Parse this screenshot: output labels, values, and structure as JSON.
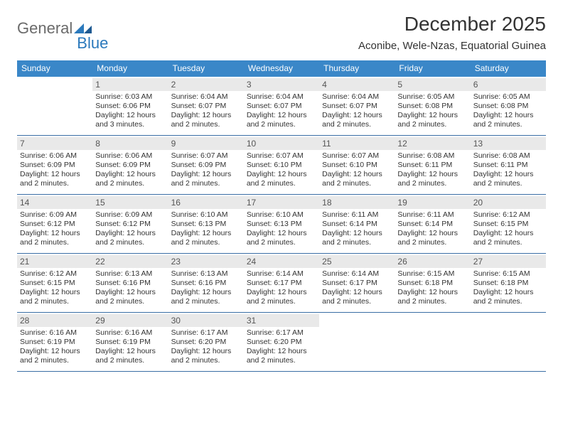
{
  "logo": {
    "text1": "General",
    "text2": "Blue"
  },
  "title": "December 2025",
  "subtitle": "Aconibe, Wele-Nzas, Equatorial Guinea",
  "colors": {
    "header_bar": "#3a87c8",
    "header_text": "#ffffff",
    "daynum_bg": "#e9e9e9",
    "week_border": "#3a6ea5",
    "logo_gray": "#6a6a6a",
    "logo_blue": "#2b79bc"
  },
  "dow": [
    "Sunday",
    "Monday",
    "Tuesday",
    "Wednesday",
    "Thursday",
    "Friday",
    "Saturday"
  ],
  "weeks": [
    [
      {
        "n": "",
        "sr": "",
        "ss": "",
        "dl": ""
      },
      {
        "n": "1",
        "sr": "6:03 AM",
        "ss": "6:06 PM",
        "dl": "12 hours and 3 minutes."
      },
      {
        "n": "2",
        "sr": "6:04 AM",
        "ss": "6:07 PM",
        "dl": "12 hours and 2 minutes."
      },
      {
        "n": "3",
        "sr": "6:04 AM",
        "ss": "6:07 PM",
        "dl": "12 hours and 2 minutes."
      },
      {
        "n": "4",
        "sr": "6:04 AM",
        "ss": "6:07 PM",
        "dl": "12 hours and 2 minutes."
      },
      {
        "n": "5",
        "sr": "6:05 AM",
        "ss": "6:08 PM",
        "dl": "12 hours and 2 minutes."
      },
      {
        "n": "6",
        "sr": "6:05 AM",
        "ss": "6:08 PM",
        "dl": "12 hours and 2 minutes."
      }
    ],
    [
      {
        "n": "7",
        "sr": "6:06 AM",
        "ss": "6:09 PM",
        "dl": "12 hours and 2 minutes."
      },
      {
        "n": "8",
        "sr": "6:06 AM",
        "ss": "6:09 PM",
        "dl": "12 hours and 2 minutes."
      },
      {
        "n": "9",
        "sr": "6:07 AM",
        "ss": "6:09 PM",
        "dl": "12 hours and 2 minutes."
      },
      {
        "n": "10",
        "sr": "6:07 AM",
        "ss": "6:10 PM",
        "dl": "12 hours and 2 minutes."
      },
      {
        "n": "11",
        "sr": "6:07 AM",
        "ss": "6:10 PM",
        "dl": "12 hours and 2 minutes."
      },
      {
        "n": "12",
        "sr": "6:08 AM",
        "ss": "6:11 PM",
        "dl": "12 hours and 2 minutes."
      },
      {
        "n": "13",
        "sr": "6:08 AM",
        "ss": "6:11 PM",
        "dl": "12 hours and 2 minutes."
      }
    ],
    [
      {
        "n": "14",
        "sr": "6:09 AM",
        "ss": "6:12 PM",
        "dl": "12 hours and 2 minutes."
      },
      {
        "n": "15",
        "sr": "6:09 AM",
        "ss": "6:12 PM",
        "dl": "12 hours and 2 minutes."
      },
      {
        "n": "16",
        "sr": "6:10 AM",
        "ss": "6:13 PM",
        "dl": "12 hours and 2 minutes."
      },
      {
        "n": "17",
        "sr": "6:10 AM",
        "ss": "6:13 PM",
        "dl": "12 hours and 2 minutes."
      },
      {
        "n": "18",
        "sr": "6:11 AM",
        "ss": "6:14 PM",
        "dl": "12 hours and 2 minutes."
      },
      {
        "n": "19",
        "sr": "6:11 AM",
        "ss": "6:14 PM",
        "dl": "12 hours and 2 minutes."
      },
      {
        "n": "20",
        "sr": "6:12 AM",
        "ss": "6:15 PM",
        "dl": "12 hours and 2 minutes."
      }
    ],
    [
      {
        "n": "21",
        "sr": "6:12 AM",
        "ss": "6:15 PM",
        "dl": "12 hours and 2 minutes."
      },
      {
        "n": "22",
        "sr": "6:13 AM",
        "ss": "6:16 PM",
        "dl": "12 hours and 2 minutes."
      },
      {
        "n": "23",
        "sr": "6:13 AM",
        "ss": "6:16 PM",
        "dl": "12 hours and 2 minutes."
      },
      {
        "n": "24",
        "sr": "6:14 AM",
        "ss": "6:17 PM",
        "dl": "12 hours and 2 minutes."
      },
      {
        "n": "25",
        "sr": "6:14 AM",
        "ss": "6:17 PM",
        "dl": "12 hours and 2 minutes."
      },
      {
        "n": "26",
        "sr": "6:15 AM",
        "ss": "6:18 PM",
        "dl": "12 hours and 2 minutes."
      },
      {
        "n": "27",
        "sr": "6:15 AM",
        "ss": "6:18 PM",
        "dl": "12 hours and 2 minutes."
      }
    ],
    [
      {
        "n": "28",
        "sr": "6:16 AM",
        "ss": "6:19 PM",
        "dl": "12 hours and 2 minutes."
      },
      {
        "n": "29",
        "sr": "6:16 AM",
        "ss": "6:19 PM",
        "dl": "12 hours and 2 minutes."
      },
      {
        "n": "30",
        "sr": "6:17 AM",
        "ss": "6:20 PM",
        "dl": "12 hours and 2 minutes."
      },
      {
        "n": "31",
        "sr": "6:17 AM",
        "ss": "6:20 PM",
        "dl": "12 hours and 2 minutes."
      },
      {
        "n": "",
        "sr": "",
        "ss": "",
        "dl": ""
      },
      {
        "n": "",
        "sr": "",
        "ss": "",
        "dl": ""
      },
      {
        "n": "",
        "sr": "",
        "ss": "",
        "dl": ""
      }
    ]
  ],
  "labels": {
    "sunrise": "Sunrise:",
    "sunset": "Sunset:",
    "daylight": "Daylight:"
  }
}
